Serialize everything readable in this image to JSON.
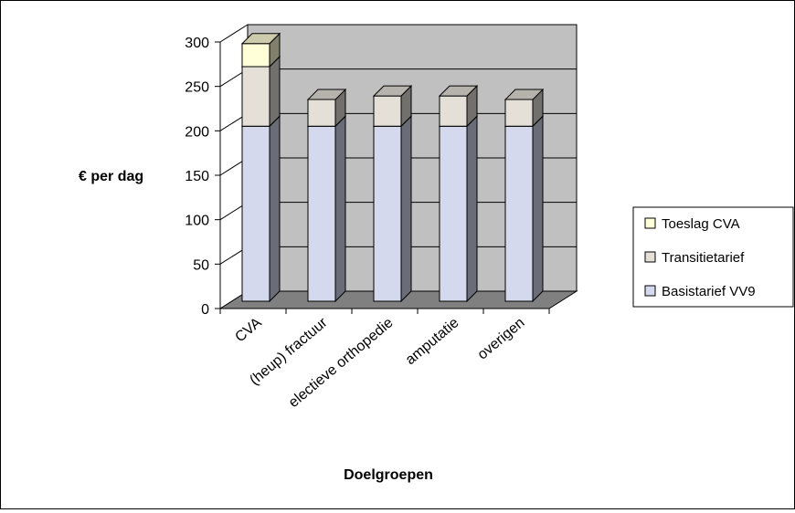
{
  "chart_data": {
    "type": "bar",
    "stacked": true,
    "three_d": true,
    "xlabel": "Doelgroepen",
    "ylabel": "€ per dag",
    "ylim": [
      0,
      300
    ],
    "yticks": [
      0,
      50,
      100,
      150,
      200,
      250,
      300
    ],
    "grid": true,
    "legend_position": "right",
    "categories": [
      "CVA",
      "(heup) fractuur",
      "electieve orthopedie",
      "amputatie",
      "overigen"
    ],
    "series": [
      {
        "name": "Basistarief VV9",
        "values": [
          197,
          197,
          197,
          197,
          197
        ],
        "color": "#d4d9ee"
      },
      {
        "name": "Transitietarief",
        "values": [
          67,
          30,
          34,
          34,
          30
        ],
        "color": "#e4e0d8"
      },
      {
        "name": "Toeslag CVA",
        "values": [
          26,
          0,
          0,
          0,
          0
        ],
        "color": "#ffffd8"
      }
    ],
    "legend_order": [
      "Toeslag CVA",
      "Transitietarief",
      "Basistarief VV9"
    ]
  }
}
